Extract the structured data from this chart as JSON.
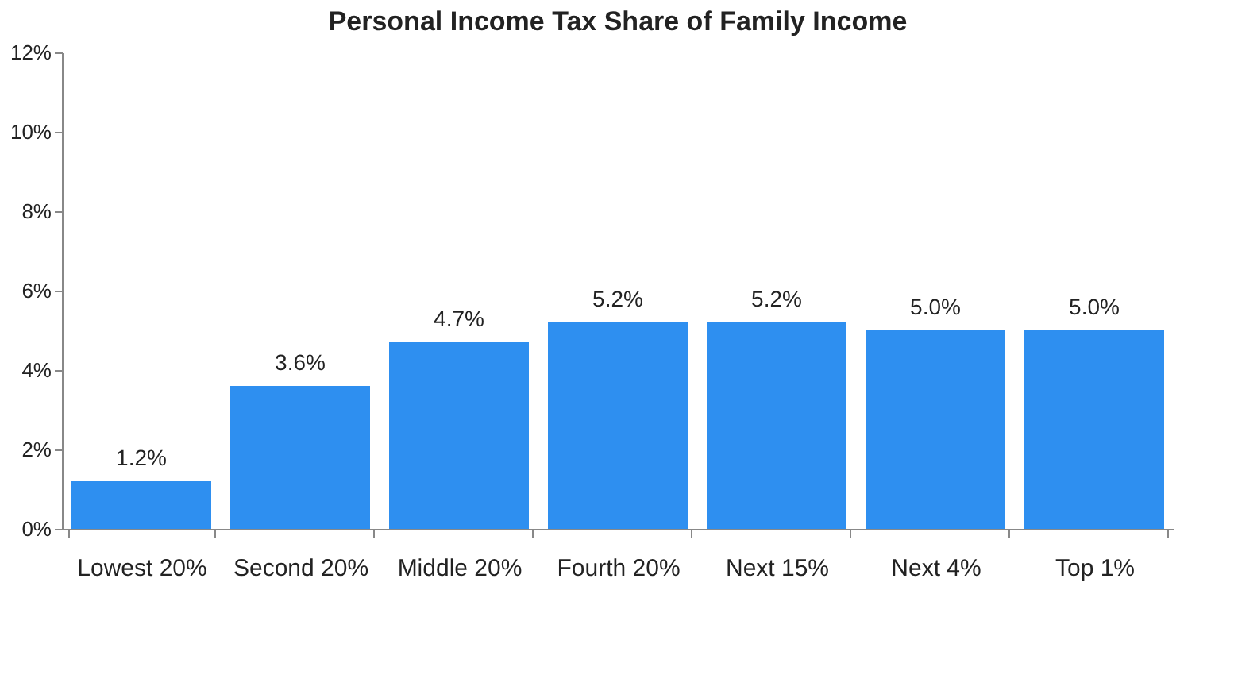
{
  "chart_data": {
    "type": "bar",
    "title": "Personal Income Tax Share of Family Income",
    "categories": [
      "Lowest 20%",
      "Second 20%",
      "Middle 20%",
      "Fourth 20%",
      "Next 15%",
      "Next 4%",
      "Top 1%"
    ],
    "values": [
      1.2,
      3.6,
      4.7,
      5.2,
      5.2,
      5.0,
      5.0
    ],
    "value_labels": [
      "1.2%",
      "3.6%",
      "4.7%",
      "5.2%",
      "5.2%",
      "5.0%",
      "5.0%"
    ],
    "color": "#2e8ff0",
    "ylim": [
      0,
      12
    ],
    "yticks": [
      {
        "value": 0,
        "label": "0%"
      },
      {
        "value": 2,
        "label": "2%"
      },
      {
        "value": 4,
        "label": "4%"
      },
      {
        "value": 6,
        "label": "6%"
      },
      {
        "value": 8,
        "label": "8%"
      },
      {
        "value": 10,
        "label": "10%"
      },
      {
        "value": 12,
        "label": "12%"
      }
    ],
    "grid": false
  }
}
